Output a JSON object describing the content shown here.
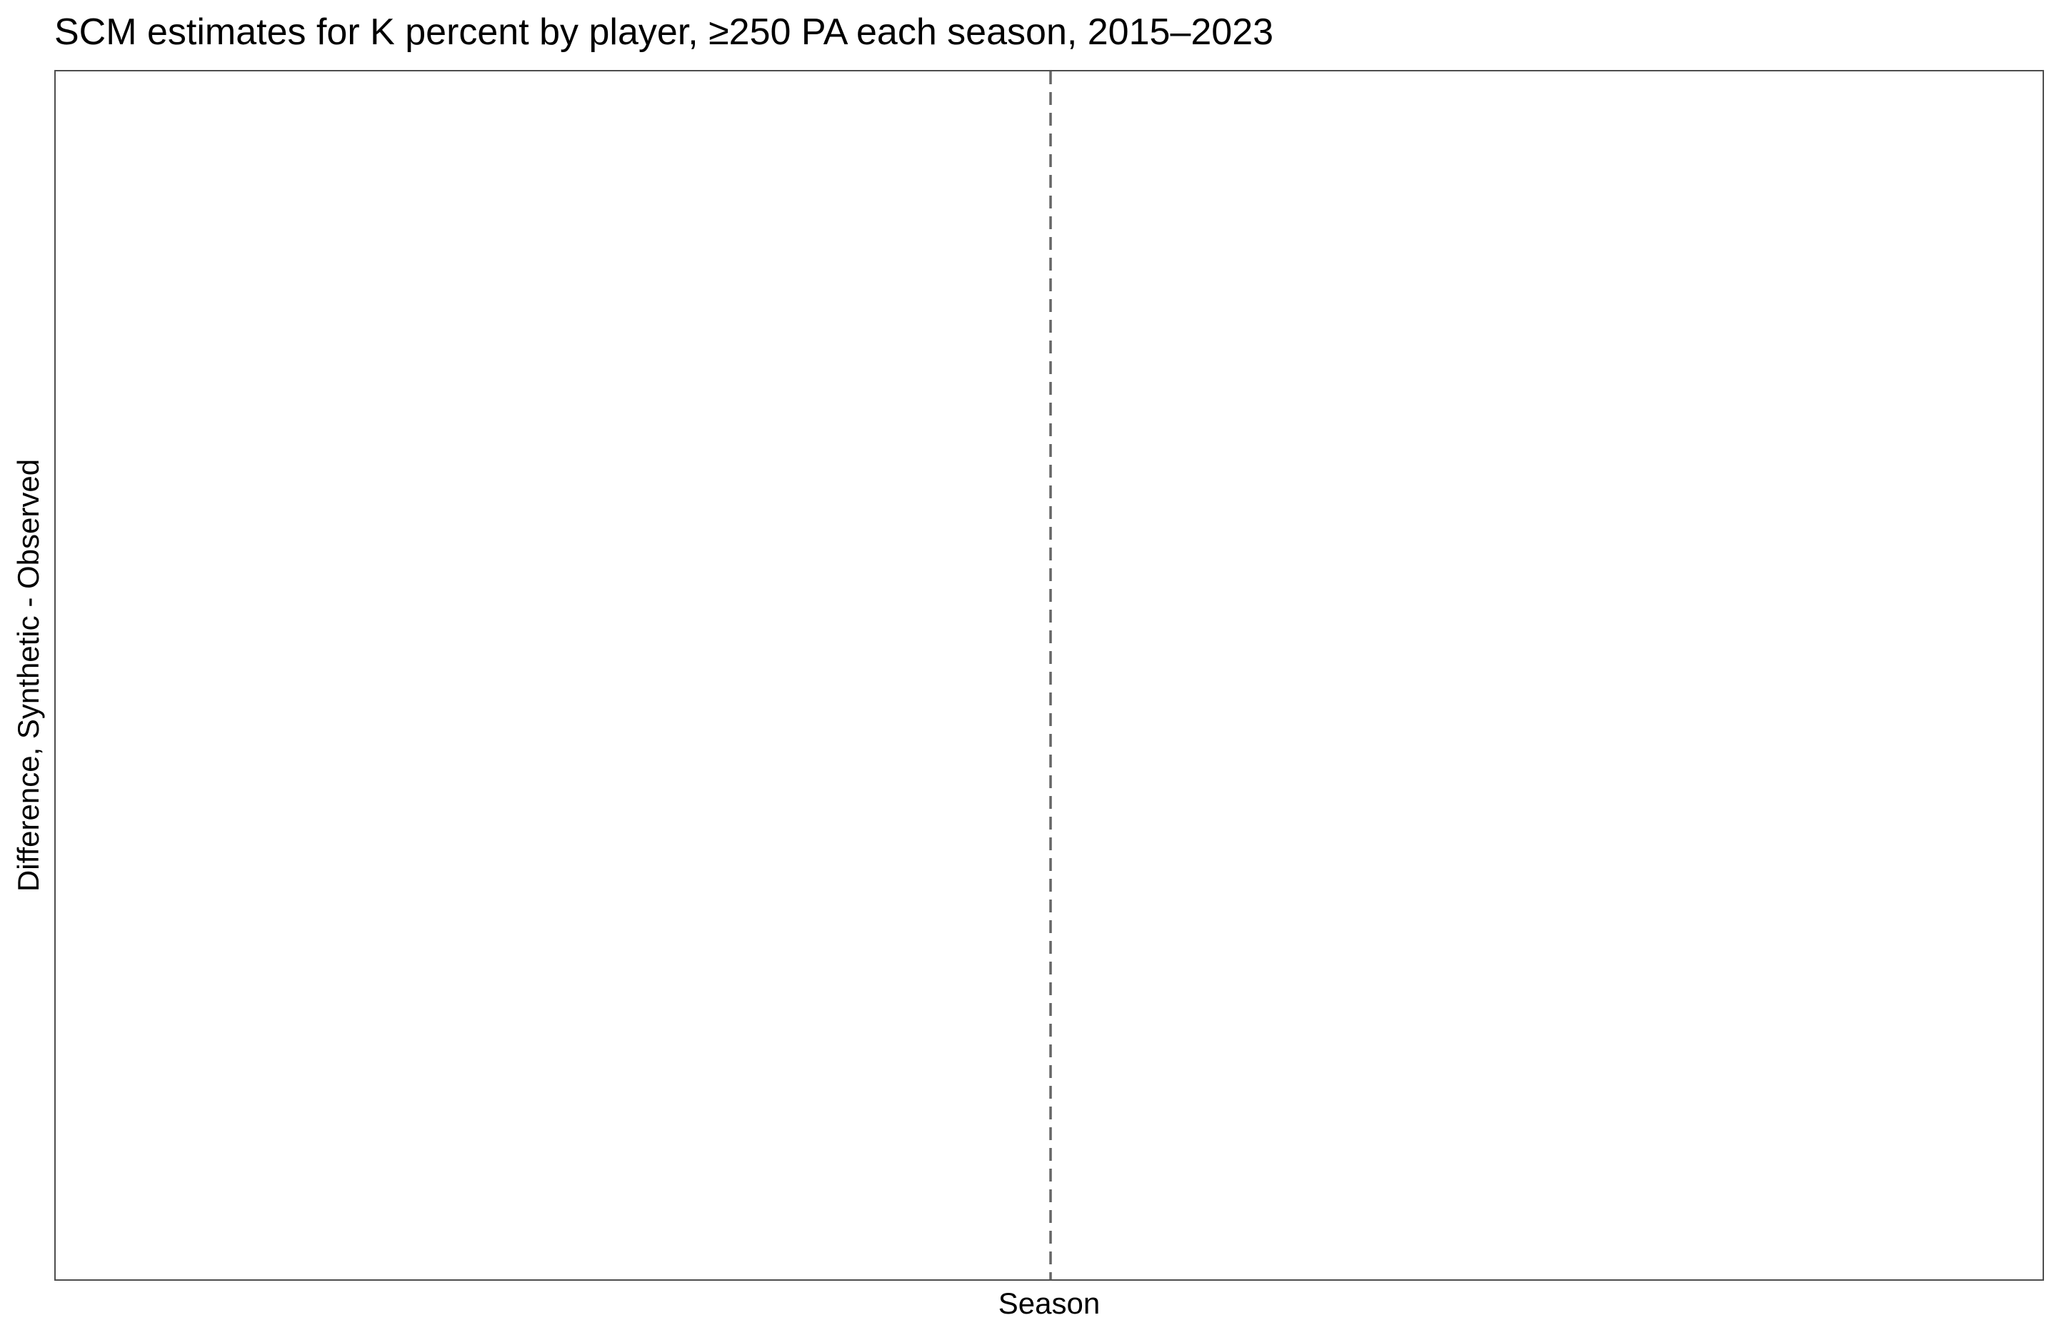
{
  "chart_data": {
    "type": "line",
    "title": "SCM estimates for K percent by player, ≥250 PA each season, 2015–2023",
    "xlabel": "Season",
    "ylabel": "Difference, Synthetic - Observed",
    "series": [],
    "grid": false,
    "legend": "none",
    "reference_lines": [
      {
        "axis": "x",
        "style": "dashed",
        "color": "#666666"
      }
    ],
    "colors": {
      "panel_border": "#4d4d4d",
      "reference_line": "#666666",
      "background": "#ffffff"
    }
  }
}
